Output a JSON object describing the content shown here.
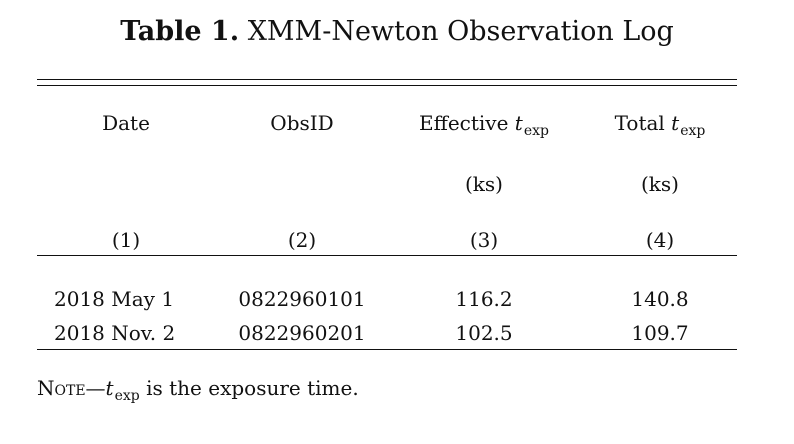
{
  "table": {
    "caption_label": "Table 1.",
    "caption_text": "XMM-Newton Observation Log",
    "headers": [
      {
        "line1": "Date",
        "unit": "",
        "index": "(1)"
      },
      {
        "line1": "ObsID",
        "unit": "",
        "index": "(2)"
      },
      {
        "line1_prefix": "Effective",
        "var": "t",
        "var_sub": "exp",
        "unit": "(ks)",
        "index": "(3)"
      },
      {
        "line1_prefix": "Total",
        "var": "t",
        "var_sub": "exp",
        "unit": "(ks)",
        "index": "(4)"
      }
    ],
    "rows": [
      {
        "date": "2018 May 1",
        "obsid": "0822960101",
        "eff_texp": "116.2",
        "tot_texp": "140.8"
      },
      {
        "date": "2018 Nov. 2",
        "obsid": "0822960201",
        "eff_texp": "102.5",
        "tot_texp": "109.7"
      }
    ],
    "note": {
      "label": "Note",
      "dash": "—",
      "var": "t",
      "var_sub": "exp",
      "text": " is the exposure time."
    }
  }
}
